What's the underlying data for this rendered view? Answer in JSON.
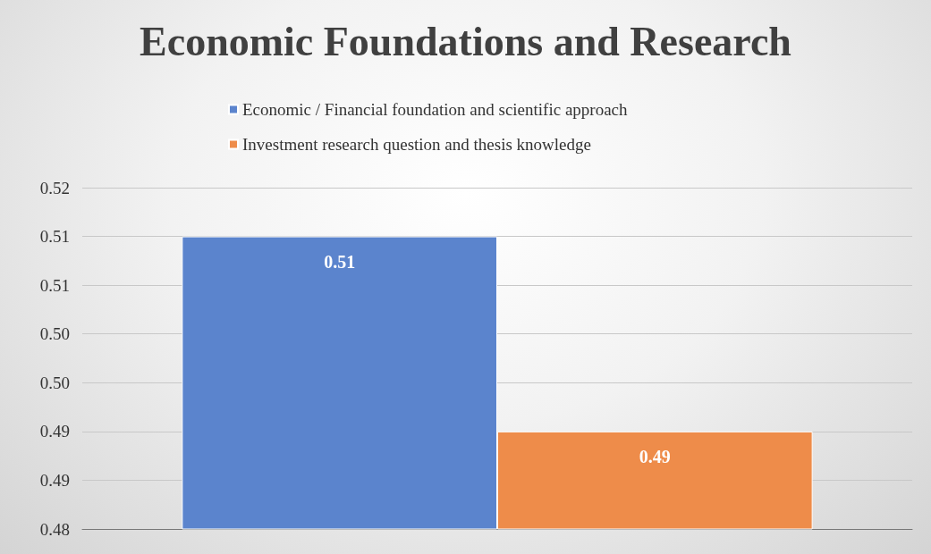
{
  "chart_data": {
    "type": "bar",
    "title": "Economic Foundations and Research",
    "categories": [
      null
    ],
    "series": [
      {
        "name": "Economic / Financial foundation and scientific approach",
        "color": "#5b84cd",
        "values": [
          0.51
        ]
      },
      {
        "name": "Investment research question and thesis knowledge",
        "color": "#ee8c4a",
        "values": [
          0.49
        ]
      }
    ],
    "ylim": [
      0.48,
      0.515
    ],
    "yticks": [
      {
        "value": 0.48,
        "label": "0.48"
      },
      {
        "value": 0.485,
        "label": "0.49"
      },
      {
        "value": 0.49,
        "label": "0.49"
      },
      {
        "value": 0.495,
        "label": "0.50"
      },
      {
        "value": 0.5,
        "label": "0.50"
      },
      {
        "value": 0.505,
        "label": "0.51"
      },
      {
        "value": 0.51,
        "label": "0.51"
      },
      {
        "value": 0.515,
        "label": "0.52"
      }
    ],
    "grid": "y",
    "legend": "top",
    "data_labels": true
  }
}
